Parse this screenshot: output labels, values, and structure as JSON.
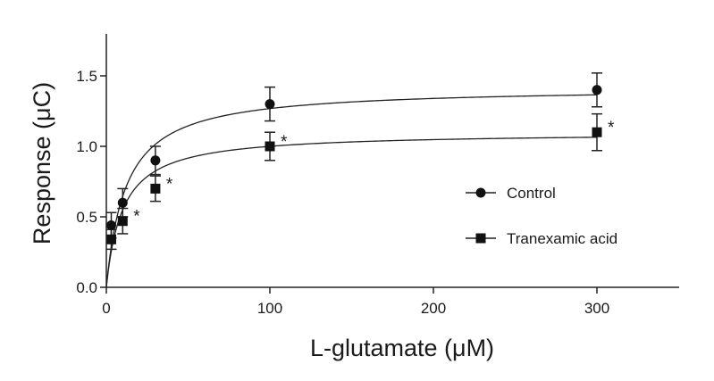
{
  "chart_data": {
    "type": "scatter",
    "title": "",
    "xlabel": "L-glutamate (μM)",
    "ylabel": "Response (μC)",
    "xlim": [
      0,
      350
    ],
    "ylim": [
      0,
      1.8
    ],
    "xticks": [
      0,
      100,
      200,
      300
    ],
    "xtick_labels": [
      "0",
      "100",
      "200",
      "300"
    ],
    "yticks": [
      0.0,
      0.5,
      1.0,
      1.5
    ],
    "ytick_labels": [
      "0.0",
      "0.5",
      "1.0",
      "1.5"
    ],
    "grid": false,
    "legend_position": "right",
    "significance_marker": "*",
    "series": [
      {
        "name": "Control",
        "marker": "circle",
        "color": "#111111",
        "x": [
          3,
          10,
          30,
          100,
          300
        ],
        "y": [
          0.44,
          0.6,
          0.9,
          1.3,
          1.4
        ],
        "err": [
          0.09,
          0.1,
          0.1,
          0.12,
          0.12
        ],
        "fit": {
          "model": "Michaelis-Menten",
          "vmax": 1.42,
          "km": 12
        }
      },
      {
        "name": "Tranexamic acid",
        "marker": "square",
        "color": "#111111",
        "x": [
          3,
          10,
          30,
          100,
          300
        ],
        "y": [
          0.34,
          0.47,
          0.7,
          1.0,
          1.1
        ],
        "err": [
          0.07,
          0.09,
          0.09,
          0.1,
          0.13
        ],
        "fit": {
          "model": "Michaelis-Menten",
          "vmax": 1.1,
          "km": 10
        }
      }
    ],
    "significant_x": [
      10,
      30,
      100,
      300
    ]
  }
}
